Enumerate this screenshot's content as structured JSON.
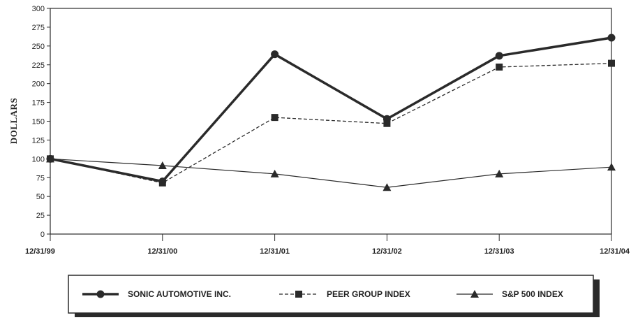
{
  "chart_data": {
    "type": "line",
    "categories": [
      "12/31/99",
      "12/31/00",
      "12/31/01",
      "12/31/02",
      "12/31/03",
      "12/31/04"
    ],
    "ylabel": "DOLLARS",
    "xlabel": "",
    "ylim": [
      0,
      300
    ],
    "yticks": [
      0,
      25,
      50,
      75,
      100,
      125,
      150,
      175,
      200,
      225,
      250,
      275,
      300
    ],
    "grid": false,
    "legend_placement": "bottom",
    "series": [
      {
        "name": "SONIC AUTOMOTIVE INC.",
        "values": [
          100,
          70,
          239,
          153,
          237,
          261
        ],
        "marker": "circle",
        "line": "thick-solid",
        "color": "#2a2a2a"
      },
      {
        "name": "PEER GROUP INDEX",
        "values": [
          100,
          68,
          155,
          147,
          222,
          227
        ],
        "marker": "square",
        "line": "dashed",
        "color": "#2a2a2a"
      },
      {
        "name": "S&P 500 INDEX",
        "values": [
          100,
          91,
          80,
          62,
          80,
          89
        ],
        "marker": "triangle",
        "line": "thin-solid",
        "color": "#2a2a2a"
      }
    ]
  }
}
